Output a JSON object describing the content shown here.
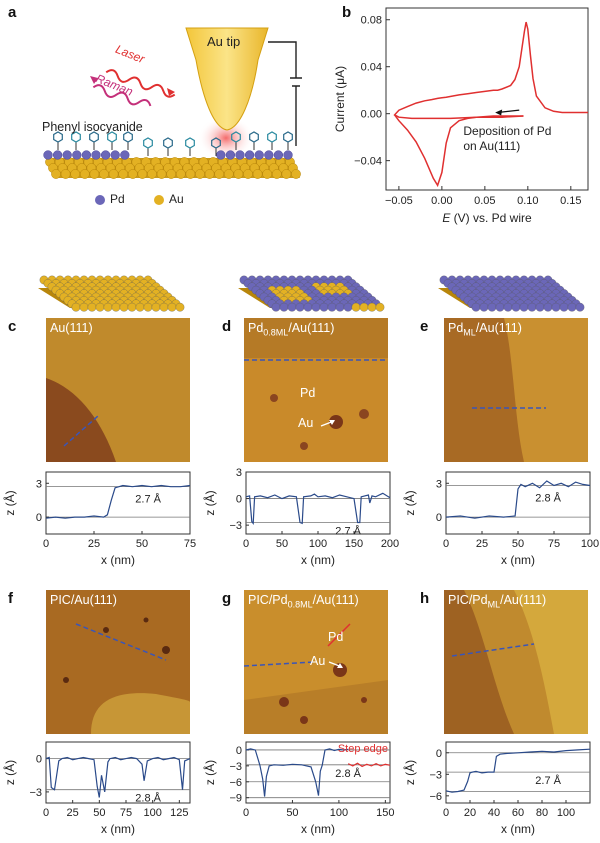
{
  "panel_letters": [
    "a",
    "b",
    "c",
    "d",
    "e",
    "f",
    "g",
    "h"
  ],
  "schematic": {
    "tip_label": "Au tip",
    "laser_label": "Laser",
    "raman_label": "Raman",
    "molecule_label": "Phenyl isocyanide",
    "legend_pd": "Pd",
    "legend_au": "Au",
    "colors": {
      "pd": "#6b67b8",
      "au": "#e3b123",
      "tip": "#f5d347",
      "glow": "#f06060"
    }
  },
  "cv": {
    "ylabel": "Current (μA)",
    "xlabel_italic": "E",
    "xlabel_rest": " (V) vs. Pd wire",
    "annotation_line1": "Deposition of Pd",
    "annotation_line2": "on Au(111)"
  },
  "stm_panels": [
    {
      "letter": "c",
      "label": "Au(111)",
      "profile_annotation": "2.7 Å"
    },
    {
      "letter": "d",
      "label_main": "Pd",
      "label_sub": "0.8ML",
      "label_tail": "/Au(111)",
      "inner_pd": "Pd",
      "inner_au": "Au",
      "profile_annotation": "2.7 Å"
    },
    {
      "letter": "e",
      "label_main": "Pd",
      "label_sub": "ML",
      "label_tail": "/Au(111)",
      "profile_annotation": "2.8 Å"
    },
    {
      "letter": "f",
      "label": "PIC/Au(111)",
      "profile_annotation": "2.8 Å"
    },
    {
      "letter": "g",
      "label_main": "PIC/Pd",
      "label_sub": "0.8ML",
      "label_tail": "/Au(111)",
      "inner_pd": "Pd",
      "inner_au": "Au",
      "profile_annotation": "2.8 Å",
      "step_edge": "Step edge"
    },
    {
      "letter": "h",
      "label_main": "PIC/Pd",
      "label_sub": "ML",
      "label_tail": "/Au(111)",
      "profile_annotation": "2.7 Å"
    }
  ],
  "profile_axes": {
    "ylabel": "z (Å)",
    "xlabel": "x (nm)"
  },
  "chart_data": [
    {
      "type": "line",
      "panel": "b",
      "title": "",
      "xlabel": "E (V) vs. Pd wire",
      "ylabel": "Current (μA)",
      "xlim": [
        -0.065,
        0.17
      ],
      "ylim": [
        -0.065,
        0.09
      ],
      "xticks": [
        -0.05,
        0,
        0.05,
        0.1,
        0.15
      ],
      "xtick_labels": [
        "−0.05",
        "0.00",
        "0.05",
        "0.10",
        "0.15"
      ],
      "yticks": [
        -0.04,
        0,
        0.04,
        0.08
      ],
      "ytick_labels": [
        "−0.04",
        "0.00",
        "0.04",
        "0.08"
      ],
      "series": [
        {
          "color": "#e03030",
          "x": [
            0.095,
            0.07,
            0.04,
            0.01,
            -0.015,
            -0.035,
            -0.05,
            -0.055,
            -0.05,
            -0.04,
            -0.03,
            -0.02,
            -0.012,
            -0.005,
            0.0,
            0.005,
            0.012,
            0.02,
            0.03,
            0.04,
            0.05,
            0.06,
            0.065,
            0.07,
            0.08,
            0.085,
            0.09,
            0.093,
            0.096,
            0.098,
            0.1,
            0.103,
            0.106,
            0.11,
            0.12,
            0.13,
            0.14,
            0.15,
            0.16,
            0.17
          ],
          "y": [
            -0.002,
            -0.003,
            -0.003,
            -0.004,
            -0.004,
            -0.004,
            -0.003,
            -0.001,
            0.003,
            0.006,
            0.009,
            0.011,
            0.012,
            0.013,
            0.0135,
            0.014,
            0.015,
            0.016,
            0.017,
            0.018,
            0.019,
            0.02,
            0.02,
            0.021,
            0.024,
            0.029,
            0.04,
            0.055,
            0.07,
            0.078,
            0.072,
            0.05,
            0.03,
            0.015,
            0.005,
            0.002,
            0.001,
            0.001,
            0.001,
            0.001
          ]
        },
        {
          "color": "#e03030",
          "x": [
            0.095,
            0.08,
            0.06,
            0.04,
            0.03,
            0.02,
            0.01,
            0.005,
            0.0,
            -0.005,
            -0.01,
            -0.02,
            -0.03,
            -0.04,
            -0.05,
            -0.055
          ],
          "y": [
            -0.002,
            -0.002,
            -0.002,
            -0.003,
            -0.004,
            -0.006,
            -0.012,
            -0.025,
            -0.05,
            -0.061,
            -0.055,
            -0.038,
            -0.024,
            -0.014,
            -0.006,
            -0.001
          ]
        }
      ]
    },
    {
      "type": "line",
      "panel": "c",
      "xlabel": "x (nm)",
      "ylabel": "z (Å)",
      "xlim": [
        0,
        75
      ],
      "ylim": [
        -1.5,
        4
      ],
      "xticks": [
        0,
        25,
        50,
        75
      ],
      "yticks": [
        0,
        3
      ],
      "guides": [
        0,
        2.7
      ],
      "series": [
        {
          "color": "#2a4a8a",
          "x": [
            0,
            5,
            10,
            15,
            20,
            25,
            30,
            32,
            34,
            36,
            38,
            40,
            45,
            50,
            55,
            60,
            65,
            70,
            75
          ],
          "y": [
            -0.1,
            0.0,
            -0.1,
            0.0,
            0.0,
            0.1,
            0.0,
            0.2,
            1.5,
            2.6,
            2.7,
            2.8,
            2.7,
            2.8,
            2.7,
            2.8,
            2.7,
            2.7,
            2.8
          ]
        }
      ]
    },
    {
      "type": "line",
      "panel": "d",
      "xlabel": "x (nm)",
      "ylabel": "z (Å)",
      "xlim": [
        0,
        200
      ],
      "ylim": [
        -4,
        3
      ],
      "xticks": [
        0,
        50,
        100,
        150,
        200
      ],
      "yticks": [
        -3,
        0,
        3
      ],
      "guides": [
        0,
        -2.7
      ],
      "series": [
        {
          "color": "#2a4a8a",
          "x": [
            0,
            5,
            8,
            10,
            12,
            20,
            30,
            40,
            50,
            60,
            70,
            75,
            78,
            80,
            90,
            95,
            100,
            110,
            120,
            130,
            140,
            150,
            155,
            158,
            160,
            170,
            172,
            175,
            180,
            190,
            200
          ],
          "y": [
            0.2,
            0.3,
            -2.6,
            -2.8,
            0.2,
            0.3,
            0.1,
            0.4,
            0.0,
            0.3,
            0.2,
            -2.7,
            -2.8,
            0.2,
            0.3,
            0.5,
            0.2,
            0.3,
            0.1,
            0.4,
            0.2,
            0.0,
            -2.7,
            -2.7,
            0.2,
            0.4,
            -0.5,
            0.3,
            0.2,
            0.6,
            0.1
          ]
        }
      ]
    },
    {
      "type": "line",
      "panel": "e",
      "xlabel": "x (nm)",
      "ylabel": "z (Å)",
      "xlim": [
        0,
        100
      ],
      "ylim": [
        -1.5,
        4
      ],
      "xticks": [
        0,
        25,
        50,
        75,
        100
      ],
      "yticks": [
        0,
        3
      ],
      "guides": [
        0,
        2.8
      ],
      "series": [
        {
          "color": "#2a4a8a",
          "x": [
            0,
            10,
            20,
            30,
            40,
            48,
            50,
            52,
            55,
            60,
            65,
            70,
            75,
            80,
            85,
            90,
            95,
            100
          ],
          "y": [
            0.0,
            0.1,
            -0.1,
            0.1,
            0.0,
            0.1,
            2.5,
            2.9,
            2.7,
            3.0,
            2.6,
            3.2,
            2.8,
            3.0,
            2.7,
            3.1,
            2.9,
            2.8
          ]
        }
      ]
    },
    {
      "type": "line",
      "panel": "f",
      "xlabel": "x (nm)",
      "ylabel": "z (Å)",
      "xlim": [
        0,
        135
      ],
      "ylim": [
        -4,
        1.5
      ],
      "xticks": [
        0,
        25,
        50,
        75,
        100,
        125
      ],
      "yticks": [
        -3,
        0
      ],
      "guides": [
        0,
        -2.8
      ],
      "series": [
        {
          "color": "#2a4a8a",
          "x": [
            0,
            3,
            5,
            8,
            12,
            15,
            20,
            25,
            30,
            35,
            40,
            45,
            48,
            50,
            52,
            55,
            58,
            60,
            65,
            70,
            75,
            80,
            85,
            90,
            92,
            95,
            100,
            105,
            110,
            115,
            120,
            125,
            128,
            130,
            135
          ],
          "y": [
            0.0,
            0.1,
            -2.6,
            -2.8,
            -0.2,
            0.0,
            0.1,
            -0.1,
            0.0,
            0.1,
            0.0,
            -0.1,
            -2.5,
            -3.5,
            -1.5,
            -3.0,
            -0.3,
            0.0,
            0.1,
            -0.1,
            0.0,
            0.1,
            0.0,
            -0.5,
            -2.0,
            -0.2,
            0.0,
            0.1,
            -0.1,
            0.0,
            0.1,
            -0.1,
            -2.8,
            -0.2,
            0.0
          ]
        }
      ]
    },
    {
      "type": "line",
      "panel": "g",
      "xlabel": "x (nm)",
      "ylabel": "z (Å)",
      "xlim": [
        0,
        155
      ],
      "ylim": [
        -10,
        1.5
      ],
      "xticks": [
        0,
        50,
        100,
        150
      ],
      "yticks": [
        -9,
        -6,
        -3,
        0
      ],
      "guides": [
        0,
        -2.8,
        -6,
        -9
      ],
      "series": [
        {
          "color": "#2a4a8a",
          "x": [
            0,
            5,
            10,
            15,
            18,
            20,
            22,
            25,
            30,
            40,
            50,
            60,
            70,
            75,
            78,
            80,
            82,
            85,
            90,
            95,
            100,
            105,
            110
          ],
          "y": [
            0.0,
            0.2,
            0.0,
            -2.9,
            -5.5,
            -8.8,
            -5.0,
            -3.0,
            -2.8,
            -2.9,
            -2.7,
            -2.8,
            -3.2,
            -6.0,
            -8.6,
            -4.0,
            -2.9,
            0.0,
            0.2,
            -0.1,
            0.1,
            0.0,
            0.1
          ]
        },
        {
          "color": "#e03030",
          "x": [
            110,
            115,
            120,
            125,
            130,
            135,
            140,
            145,
            150,
            155
          ],
          "y": [
            -2.6,
            -3.0,
            -2.5,
            -3.1,
            -2.7,
            -3.0,
            -2.6,
            -3.0,
            -2.7,
            -2.9
          ]
        }
      ]
    },
    {
      "type": "line",
      "panel": "h",
      "xlabel": "x (nm)",
      "ylabel": "z (Å)",
      "xlim": [
        0,
        120
      ],
      "ylim": [
        -7,
        1.5
      ],
      "xticks": [
        0,
        20,
        40,
        60,
        80,
        100
      ],
      "yticks": [
        -6,
        -3,
        0
      ],
      "guides": [
        0,
        -2.7,
        -5.4
      ],
      "series": [
        {
          "color": "#2a4a8a",
          "x": [
            0,
            5,
            10,
            15,
            18,
            20,
            22,
            25,
            30,
            35,
            40,
            42,
            45,
            50,
            60,
            70,
            80,
            90,
            100,
            110,
            120
          ],
          "y": [
            -5.3,
            -5.5,
            -5.4,
            -5.2,
            -4.0,
            -2.8,
            -2.7,
            -2.6,
            -2.8,
            -2.7,
            -2.7,
            -0.5,
            -0.2,
            -0.1,
            0.0,
            0.1,
            0.2,
            0.1,
            0.3,
            0.4,
            0.5
          ]
        }
      ]
    }
  ]
}
